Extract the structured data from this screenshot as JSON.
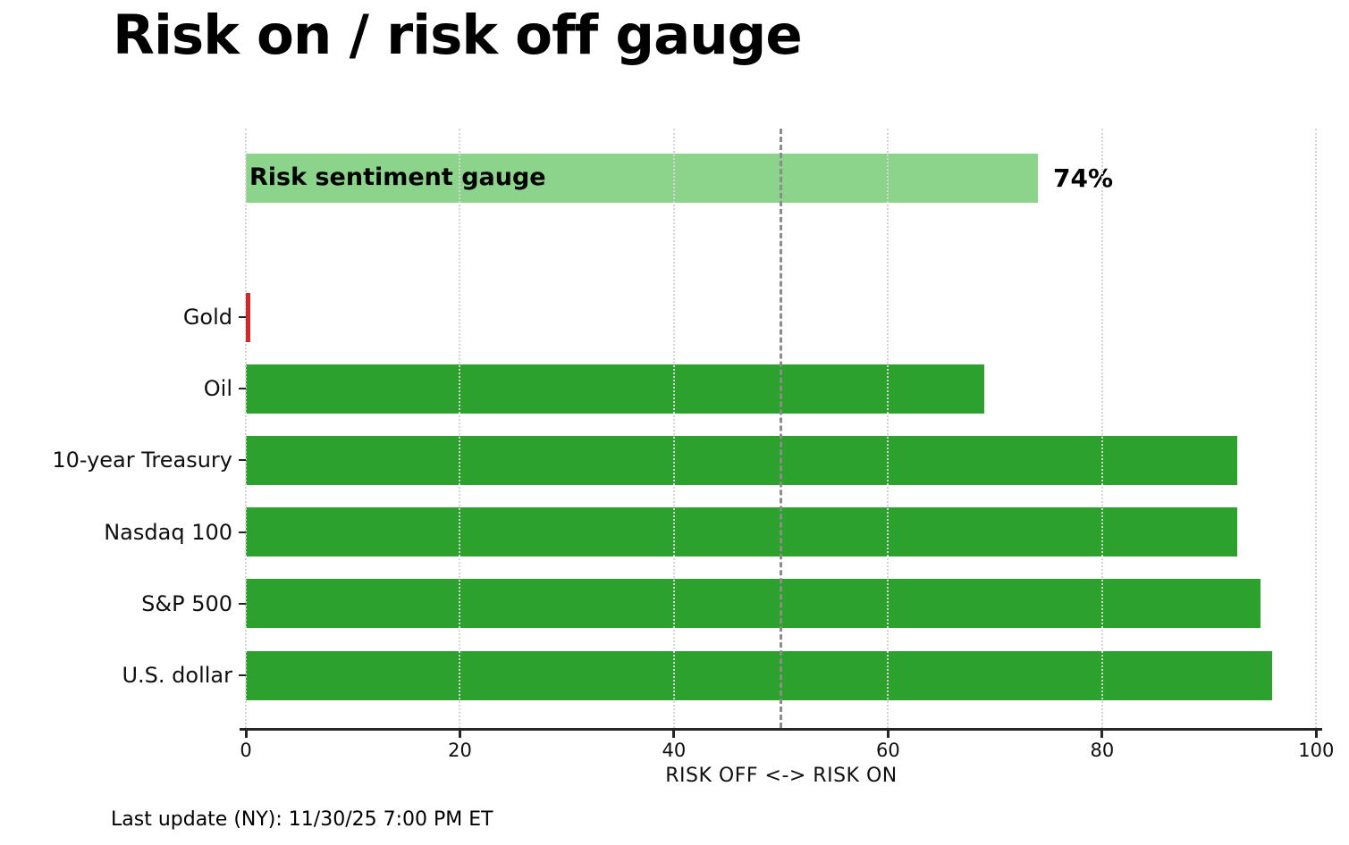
{
  "header": {
    "title": "Risk on / risk off gauge"
  },
  "footer": {
    "last_update": "Last update (NY): 11/30/25 7:00 PM ET"
  },
  "chart_data": {
    "type": "bar",
    "orientation": "horizontal",
    "title": "Risk on / risk off gauge",
    "xlabel": "RISK OFF <-> RISK ON",
    "ylabel": "",
    "xlim": [
      0,
      100
    ],
    "xticks": [
      0,
      20,
      40,
      60,
      80,
      100
    ],
    "grid": "vertical dotted gridlines at x ticks",
    "legend": "none",
    "midline": {
      "x": 50,
      "style": "dashed",
      "color": "#8c8c8c"
    },
    "gauge": {
      "label": "Risk sentiment gauge",
      "value": 74,
      "value_label": "74%",
      "color": "#8cd48c"
    },
    "categories": [
      "Gold",
      "Oil",
      "10-year Treasury",
      "Nasdaq 100",
      "S&P 500",
      "U.S. dollar"
    ],
    "values": [
      0.4,
      69,
      92.6,
      92.6,
      94.8,
      95.9
    ],
    "bar_colors": [
      "#d62728",
      "#2da12d",
      "#2da12d",
      "#2da12d",
      "#2da12d",
      "#2da12d"
    ],
    "colors": {
      "risk_on_green": "#2da12d",
      "risk_off_red": "#d62728",
      "gauge_light_green": "#8cd48c",
      "axis": "#262626",
      "grid": "#d4d4d4"
    }
  }
}
